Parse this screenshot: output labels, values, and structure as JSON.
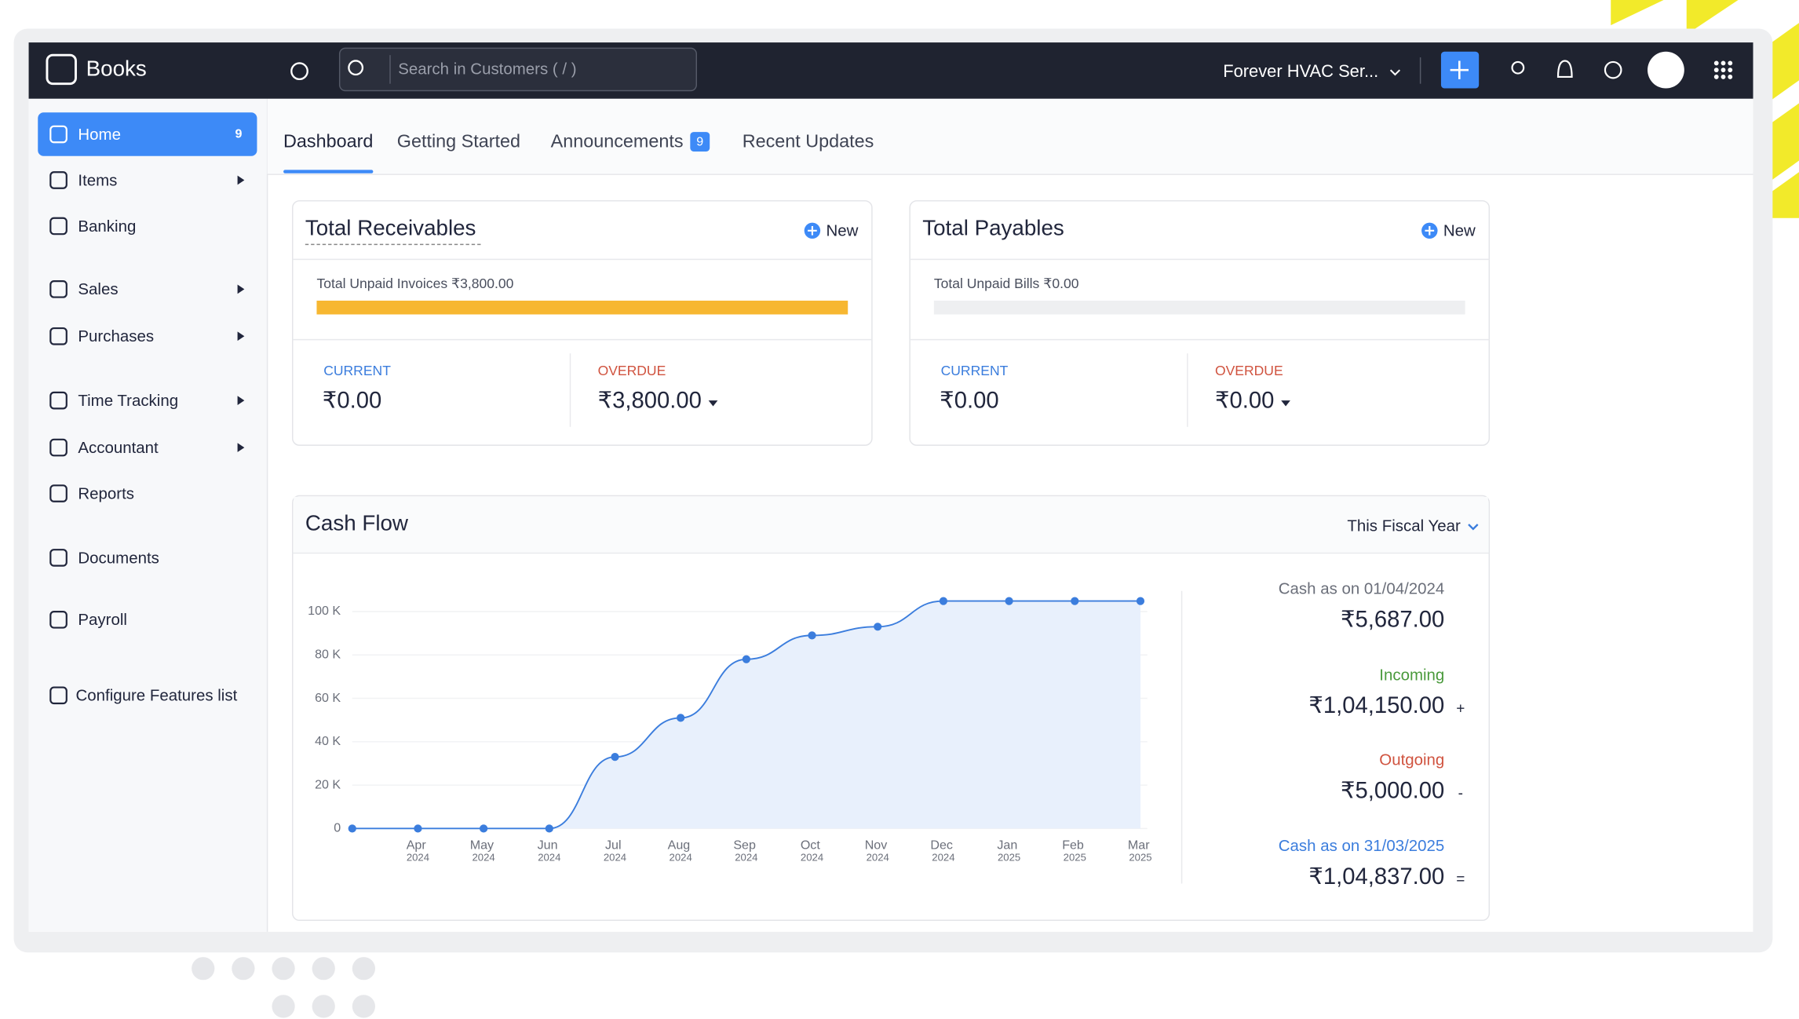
{
  "app": {
    "brand": "Books",
    "search_placeholder": "Search in Customers ( / )",
    "organization": "Forever HVAC Ser..."
  },
  "sidebar": {
    "items": [
      {
        "label": "Home",
        "badge": 9,
        "selected": true
      },
      {
        "label": "Items",
        "submenu": true
      },
      {
        "label": "Banking"
      },
      {
        "label": "Sales",
        "submenu": true
      },
      {
        "label": "Purchases",
        "submenu": true
      },
      {
        "label": "Time Tracking",
        "submenu": true
      },
      {
        "label": "Accountant",
        "submenu": true
      },
      {
        "label": "Reports"
      },
      {
        "label": "Documents"
      },
      {
        "label": "Payroll"
      },
      {
        "label": "Configure Features list"
      }
    ]
  },
  "tabs": [
    {
      "label": "Dashboard",
      "selected": true
    },
    {
      "label": "Getting Started"
    },
    {
      "label": "Announcements",
      "badge": 9
    },
    {
      "label": "Recent Updates"
    }
  ],
  "receivables": {
    "title": "Total Receivables",
    "new": "New",
    "unpaid": "Total Unpaid Invoices ₹3,800.00",
    "current_label": "CURRENT",
    "current": "₹0.00",
    "overdue_label": "OVERDUE",
    "overdue": "₹3,800.00"
  },
  "payables": {
    "title": "Total Payables",
    "new": "New",
    "unpaid": "Total Unpaid Bills ₹0.00",
    "current_label": "CURRENT",
    "current": "₹0.00",
    "overdue_label": "OVERDUE",
    "overdue": "₹0.00"
  },
  "cash_flow": {
    "title": "Cash Flow",
    "period": "This Fiscal Year",
    "summary": [
      {
        "label": "Cash as on 01/04/2024",
        "value": "₹5,687.00",
        "color": "#6b6f7a"
      },
      {
        "label": "Incoming",
        "value": "₹1,04,150.00",
        "sign": "+",
        "color": "#4a9a3c"
      },
      {
        "label": "Outgoing",
        "value": "₹5,000.00",
        "sign": "-",
        "color": "#d0533f"
      },
      {
        "label": "Cash as on 31/03/2025",
        "value": "₹1,04,837.00",
        "sign": "=",
        "color": "#3b7ddd"
      }
    ]
  },
  "chart_data": {
    "type": "line",
    "categories": [
      null,
      "Apr 2024",
      "May 2024",
      "Jun 2024",
      "Jul 2024",
      "Aug 2024",
      "Sep 2024",
      "Oct 2024",
      "Nov 2024",
      "Dec 2024",
      "Jan 2025",
      "Feb 2025",
      "Mar 2025"
    ],
    "series": [
      {
        "color": "#3b7ddd",
        "values": [
          0,
          0,
          0,
          0,
          33000,
          51000,
          78000,
          89000,
          93000,
          104837,
          104837,
          104837,
          104837
        ]
      }
    ],
    "ylim": [
      0,
      110000
    ],
    "yticks": [
      0,
      {
        "value": 20000,
        "label": "20 K"
      },
      {
        "value": 40000,
        "label": "40 K"
      },
      {
        "value": 60000,
        "label": "60 K"
      },
      {
        "value": 80000,
        "label": "80 K"
      },
      {
        "value": 100000,
        "label": "100 K"
      }
    ],
    "grid": true
  }
}
